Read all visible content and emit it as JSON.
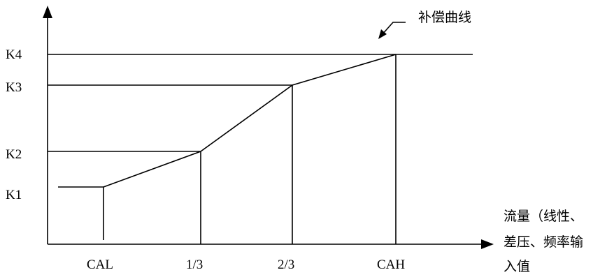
{
  "y_labels": {
    "k1": "K1",
    "k2": "K2",
    "k3": "K3",
    "k4": "K4"
  },
  "x_labels": {
    "cal": "CAL",
    "one_third": "1/3",
    "two_thirds": "2/3",
    "cah": "CAH"
  },
  "curve_label": "补偿曲线",
  "x_axis_title_lines": [
    "流量（线性、",
    "差压、频率输",
    "入值"
  ]
}
